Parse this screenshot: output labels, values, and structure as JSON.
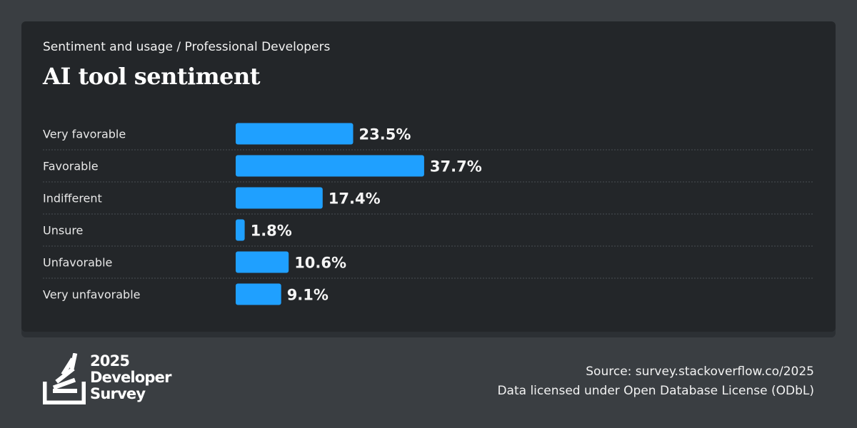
{
  "header": {
    "subtitle": "Sentiment and usage / Professional Developers",
    "title": "AI tool sentiment"
  },
  "colors": {
    "background": "#3a3e42",
    "card": "#232629",
    "bar": "#1fa0ff",
    "divider": "#4a4e52"
  },
  "chart_data": {
    "type": "bar",
    "orientation": "horizontal",
    "title": "AI tool sentiment",
    "subtitle": "Sentiment and usage / Professional Developers",
    "categories": [
      "Very favorable",
      "Favorable",
      "Indifferent",
      "Unsure",
      "Unfavorable",
      "Very unfavorable"
    ],
    "values": [
      23.5,
      37.7,
      17.4,
      1.8,
      10.6,
      9.1
    ],
    "value_labels": [
      "23.5%",
      "37.7%",
      "17.4%",
      "1.8%",
      "10.6%",
      "9.1%"
    ],
    "unit": "%",
    "xlim": [
      0,
      100
    ],
    "grid": false,
    "legend": "none"
  },
  "footer": {
    "logo_lines": [
      "2025",
      "Developer",
      "Survey"
    ],
    "source": "Source: survey.stackoverflow.co/2025",
    "license": "Data licensed under Open Database License (ODbL)"
  }
}
